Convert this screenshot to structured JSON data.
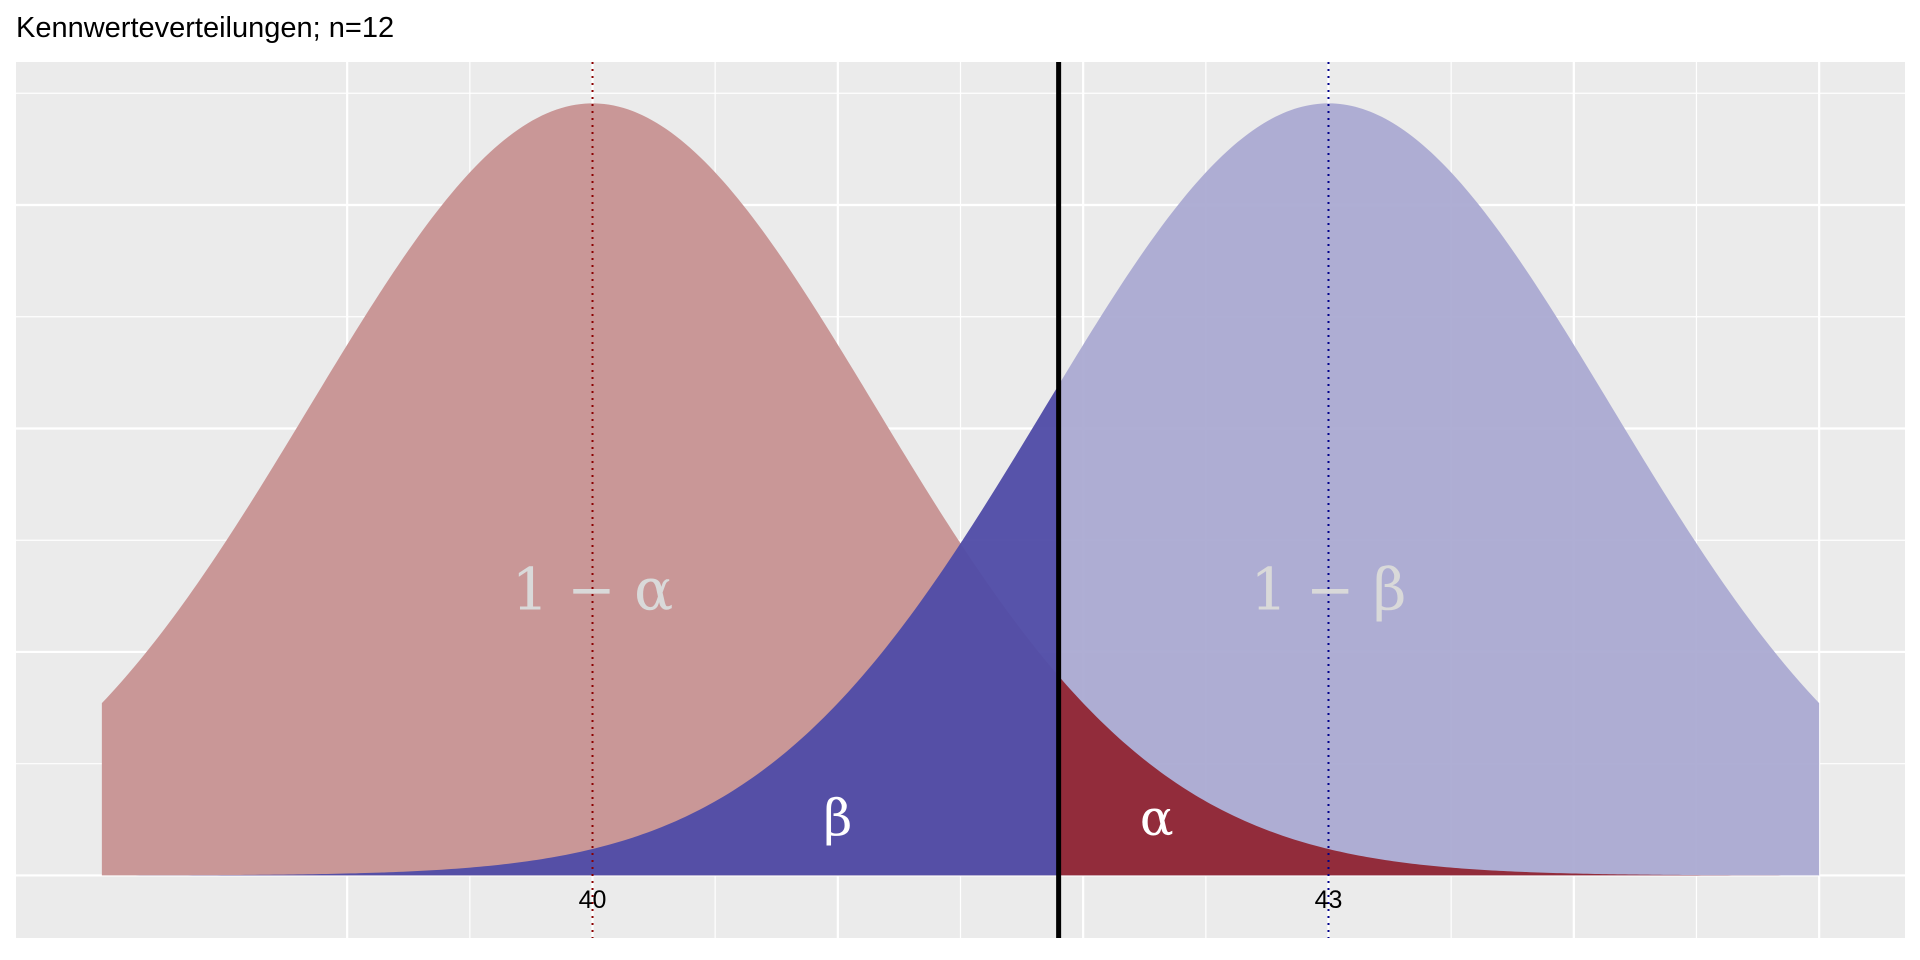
{
  "chart_data": {
    "type": "area",
    "title": "Kennwerteverteilungen; n=12",
    "xlabel": "",
    "ylabel": "",
    "xlim": [
      37.65,
      45.35
    ],
    "ylim": [
      -0.028,
      0.364
    ],
    "x_ticks": [
      {
        "value": 40,
        "label": "40"
      },
      {
        "value": 43,
        "label": "43"
      }
    ],
    "grid": true,
    "critical_value": 41.9,
    "series": [
      {
        "mean": 40,
        "sd": 1.1547,
        "from": 38,
        "to": 45
      },
      {
        "mean": 43,
        "sd": 1.1547,
        "from": 38,
        "to": 45
      }
    ],
    "regions": [
      {
        "label": "1 − α",
        "dist": 0,
        "from": 38,
        "to": 41.9,
        "color": "#c99797",
        "label_x": 40,
        "label_y": 0.119,
        "label_color": "#d9d9d9"
      },
      {
        "label": "β",
        "dist": 1,
        "from": 38,
        "to": 41.9,
        "color": "#4f4ba6",
        "label_x": 41.0,
        "label_y": 0.018,
        "label_color": "#ffffff"
      },
      {
        "label": "1 − β",
        "dist": 1,
        "from": 41.9,
        "to": 45,
        "color": "#aaa9d1",
        "label_x": 43,
        "label_y": 0.119,
        "label_color": "#d9d9d9"
      },
      {
        "label": "α",
        "dist": 0,
        "from": 41.9,
        "to": 45,
        "color": "#922c3b",
        "label_x": 42.3,
        "label_y": 0.018,
        "label_color": "#ffffff"
      }
    ],
    "mean_lines": [
      {
        "x": 40,
        "color": "#8b0000",
        "style": "dotted"
      },
      {
        "x": 43,
        "color": "#00008b",
        "style": "dotted"
      }
    ],
    "panel_background": "#ebebeb",
    "grid_color": "#ffffff"
  }
}
